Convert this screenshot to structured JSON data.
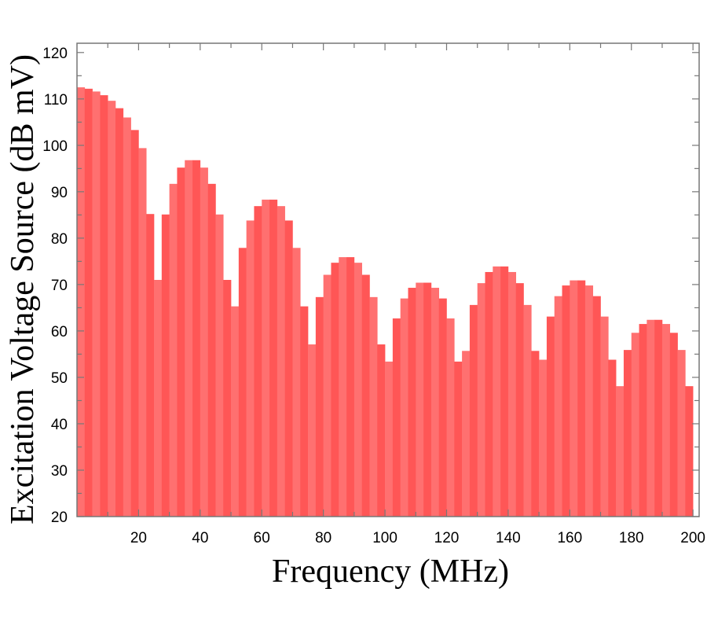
{
  "chart_data": {
    "type": "bar",
    "title": "",
    "xlabel": "Frequency (MHz)",
    "ylabel": "Excitation Voltage Source (dB mV)",
    "xlim": [
      0,
      202
    ],
    "ylim": [
      20,
      122
    ],
    "bin_width": 2.5,
    "x": [
      1.25,
      3.75,
      6.25,
      8.75,
      11.25,
      13.75,
      16.25,
      18.75,
      21.25,
      23.75,
      26.25,
      28.75,
      31.25,
      33.75,
      36.25,
      38.75,
      41.25,
      43.75,
      46.25,
      48.75,
      51.25,
      53.75,
      56.25,
      58.75,
      61.25,
      63.75,
      66.25,
      68.75,
      71.25,
      73.75,
      76.25,
      78.75,
      81.25,
      83.75,
      86.25,
      88.75,
      91.25,
      93.75,
      96.25,
      98.75,
      101.25,
      103.75,
      106.25,
      108.75,
      111.25,
      113.75,
      116.25,
      118.75,
      121.25,
      123.75,
      126.25,
      128.75,
      131.25,
      133.75,
      136.25,
      138.75,
      141.25,
      143.75,
      146.25,
      148.75,
      151.25,
      153.75,
      156.25,
      158.75,
      161.25,
      163.75,
      166.25,
      168.75,
      171.25,
      173.75,
      176.25,
      178.75,
      181.25,
      183.75,
      186.25,
      188.75,
      191.25,
      193.75,
      196.25,
      198.75
    ],
    "values": [
      112.5,
      112.2,
      111.6,
      110.8,
      109.6,
      108.0,
      106.0,
      103.3,
      99.4,
      85.2,
      71.0,
      85.1,
      91.7,
      95.2,
      96.8,
      96.8,
      95.2,
      91.7,
      85.1,
      71.0,
      65.3,
      77.9,
      83.8,
      86.9,
      88.3,
      88.3,
      86.9,
      83.8,
      77.9,
      65.3,
      57.1,
      67.3,
      72.1,
      74.7,
      75.9,
      75.9,
      74.7,
      72.1,
      67.3,
      57.1,
      53.4,
      62.7,
      67.0,
      69.3,
      70.4,
      70.4,
      69.3,
      67.0,
      62.7,
      53.4,
      55.7,
      65.6,
      70.3,
      72.7,
      73.9,
      73.9,
      72.7,
      70.3,
      65.6,
      55.7,
      53.8,
      63.1,
      67.5,
      69.8,
      70.9,
      70.9,
      69.8,
      67.5,
      63.1,
      53.8,
      48.1,
      55.9,
      59.6,
      61.5,
      62.4,
      62.4,
      61.5,
      59.6,
      55.9,
      48.1
    ],
    "xticks": [
      20,
      40,
      60,
      80,
      100,
      120,
      140,
      160,
      180,
      200
    ],
    "xtick_labels": [
      "20",
      "40",
      "60",
      "80",
      "100",
      "120",
      "140",
      "160",
      "180",
      "200"
    ],
    "yticks": [
      20,
      30,
      40,
      50,
      60,
      70,
      80,
      90,
      100,
      110,
      120
    ],
    "ytick_labels": [
      "20",
      "30",
      "40",
      "50",
      "60",
      "70",
      "80",
      "90",
      "100",
      "110",
      "120"
    ],
    "grid": false,
    "colors": {
      "bar_a": "#ff7070",
      "bar_b": "#ff5656",
      "frame": "#777777"
    }
  }
}
